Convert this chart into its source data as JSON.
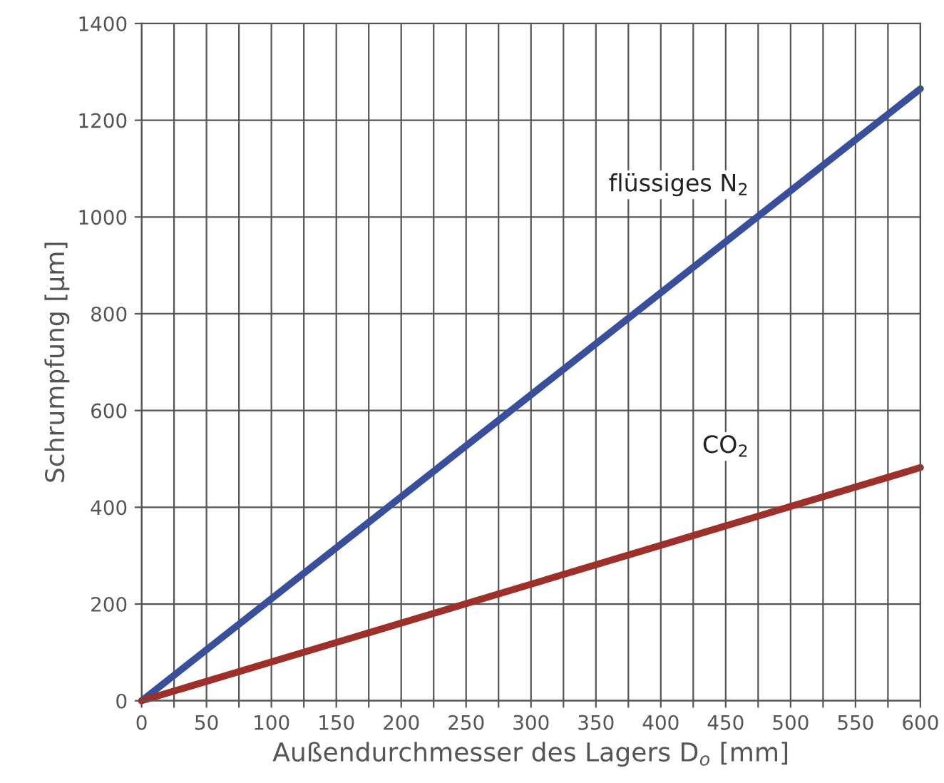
{
  "chart_data": {
    "type": "line",
    "xlabel": "Außendurchmesser des Lagers D$_{o}$ [mm]",
    "ylabel": "Schrumpfung [µm]",
    "x": [
      0,
      600
    ],
    "series": [
      {
        "name": "flüssiges N$_{2}$",
        "color": "#3a4f9c",
        "values": [
          0,
          1265
        ]
      },
      {
        "name": "CO$_{2}$",
        "color": "#9e302c",
        "values": [
          0,
          482
        ]
      }
    ],
    "xlim": [
      0,
      600
    ],
    "ylim": [
      0,
      1400
    ],
    "xticks": [
      0,
      {
        "value": 25,
        "label": null
      },
      50,
      {
        "value": 75,
        "label": null
      },
      100,
      {
        "value": 125,
        "label": null
      },
      150,
      {
        "value": 175,
        "label": null
      },
      200,
      {
        "value": 225,
        "label": null
      },
      250,
      {
        "value": 275,
        "label": null
      },
      300,
      {
        "value": 325,
        "label": null
      },
      350,
      {
        "value": 375,
        "label": null
      },
      400,
      {
        "value": 425,
        "label": null
      },
      450,
      {
        "value": 475,
        "label": null
      },
      500,
      {
        "value": 525,
        "label": null
      },
      550,
      {
        "value": 575,
        "label": null
      },
      600
    ],
    "yticks": [
      0,
      200,
      400,
      600,
      800,
      1000,
      1200,
      1400
    ],
    "grid": true,
    "legend": false,
    "marker": "none",
    "line_style": "solid"
  }
}
